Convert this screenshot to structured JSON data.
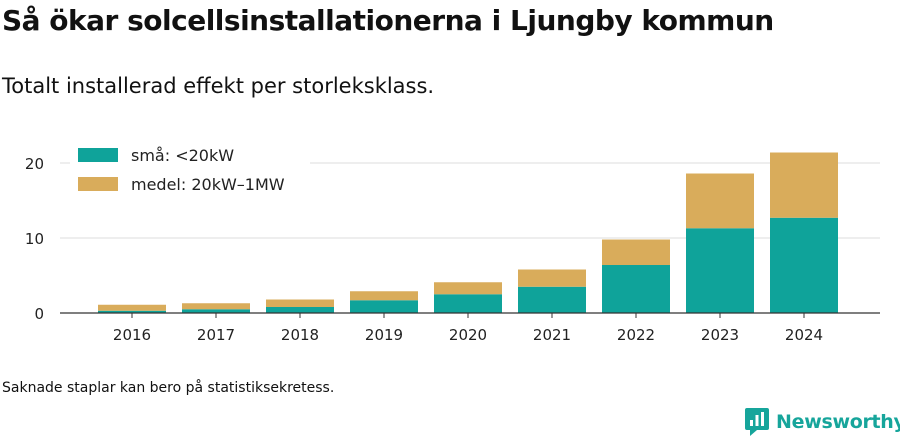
{
  "header": {
    "title": "Så ökar solcellsinstallationerna i Ljungby kommun",
    "subtitle": "Totalt installerad effekt per storleksklass."
  },
  "chart_data": {
    "type": "bar",
    "stacked": true,
    "categories": [
      "2016",
      "2017",
      "2018",
      "2019",
      "2020",
      "2021",
      "2022",
      "2023",
      "2024"
    ],
    "series": [
      {
        "name": "små: <20kW",
        "color": "#0fa39a",
        "values": [
          0.3,
          0.5,
          0.8,
          1.7,
          2.5,
          3.5,
          6.4,
          11.3,
          12.7
        ]
      },
      {
        "name": "medel: 20kW–1MW",
        "color": "#d9ac5b",
        "values": [
          0.8,
          0.8,
          1.0,
          1.2,
          1.6,
          2.3,
          3.4,
          7.3,
          8.7
        ]
      }
    ],
    "y_ticks": [
      0,
      10,
      20
    ],
    "ylim": [
      0,
      22
    ],
    "grid": true,
    "legend_position": "top-left",
    "title": "",
    "xlabel": "",
    "ylabel": ""
  },
  "footer": {
    "note": "Saknade staplar kan bero på statistiksekretess.",
    "brand": "Newsworthy",
    "brand_color": "#16a59b"
  }
}
